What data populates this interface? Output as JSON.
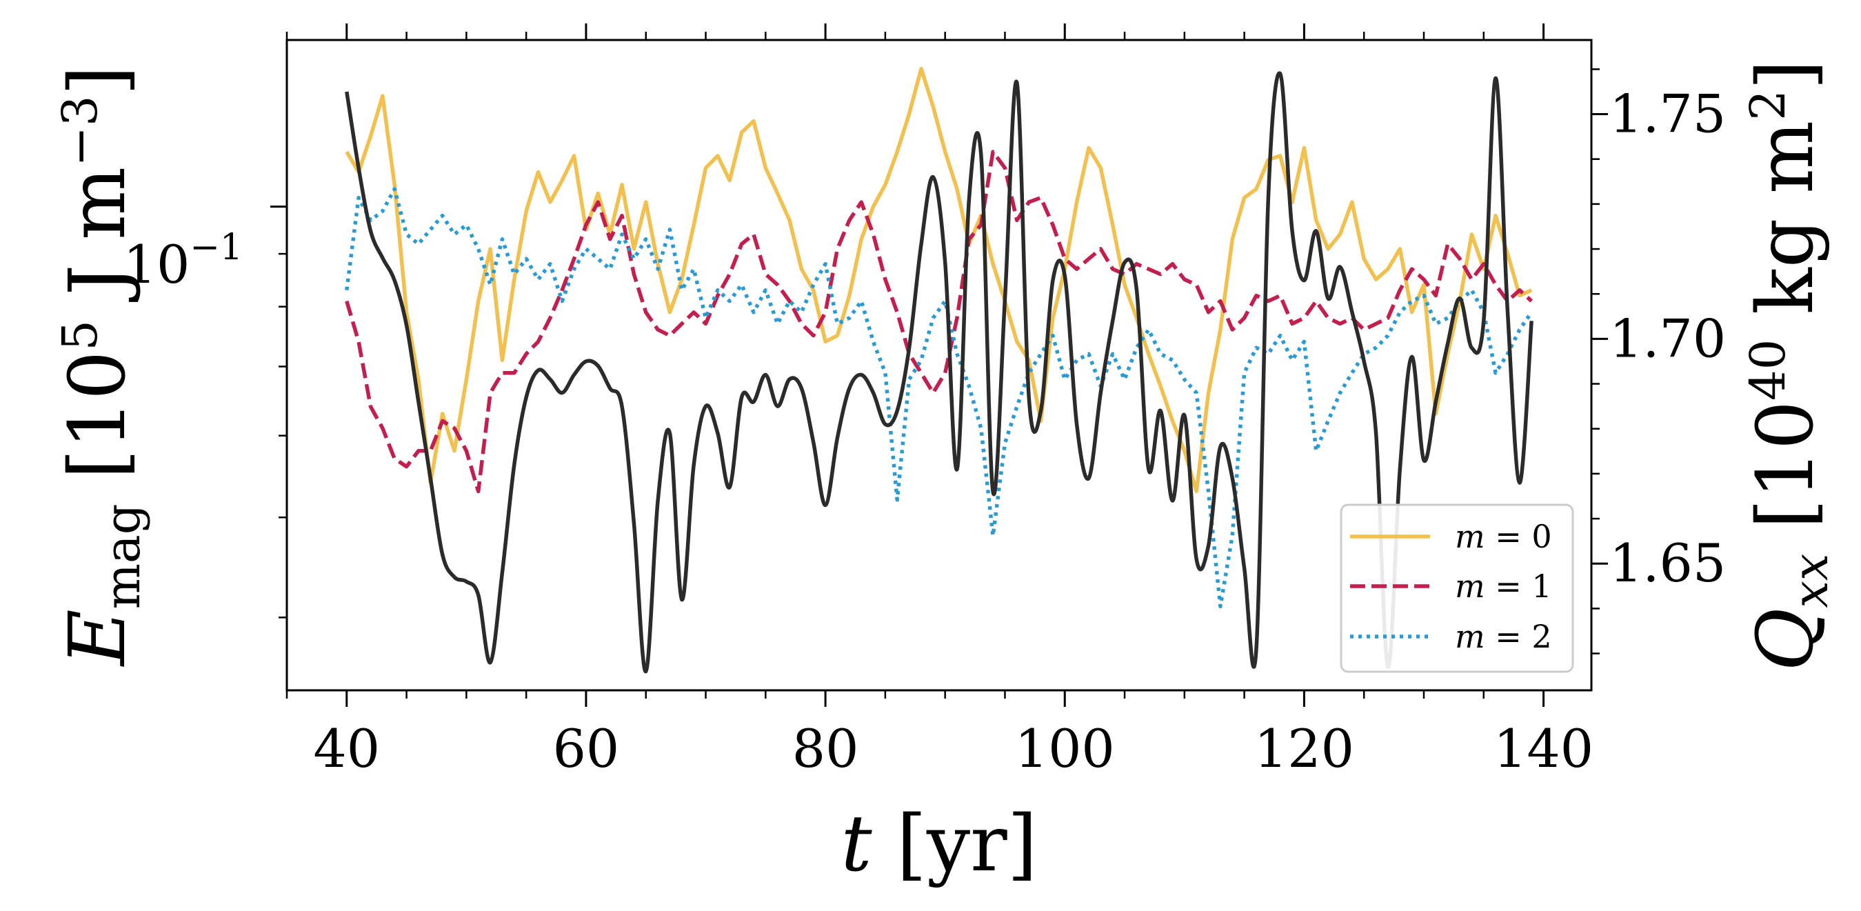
{
  "chart_data": {
    "type": "line",
    "title": "",
    "xlabel": "t [yr]",
    "ylabel_left": "E_mag [10^5 J m^-3]",
    "ylabel_right": "Q_xx [10^40 kg m^2]",
    "xlim": [
      35,
      144
    ],
    "x_ticks": [
      40,
      60,
      80,
      100,
      120,
      140
    ],
    "x_tick_labels": [
      "40",
      "60",
      "80",
      "100",
      "120",
      "140"
    ],
    "y_left_scale": "log",
    "y_left_lim": [
      0.034,
      0.145
    ],
    "y_left_tick_label": "10^-1",
    "y_left_tick_value": 0.1,
    "y_right_lim": [
      1.6218,
      1.7665
    ],
    "y_right_ticks": [
      1.65,
      1.7,
      1.75
    ],
    "y_right_tick_labels": [
      "1.65",
      "1.70",
      "1.75"
    ],
    "legend": {
      "position": "lower right",
      "entries": [
        {
          "label": "m = 0",
          "var": "m",
          "num": "0",
          "style": "solid",
          "color": "#f2c04f"
        },
        {
          "label": "m = 1",
          "var": "m",
          "num": "1",
          "style": "dashed",
          "color": "#c41e4e"
        },
        {
          "label": "m = 2",
          "var": "m",
          "num": "2",
          "style": "dotted",
          "color": "#2a9ad4"
        }
      ]
    },
    "series": [
      {
        "name": "m = 0",
        "axis": "left",
        "style": "solid",
        "color": "#f2c04f",
        "x": [
          40,
          41,
          42,
          43,
          44,
          45,
          46,
          47,
          48,
          49,
          50,
          51,
          52,
          53,
          54,
          55,
          56,
          57,
          58,
          59,
          60,
          61,
          62,
          63,
          64,
          65,
          66,
          67,
          68,
          69,
          70,
          71,
          72,
          73,
          74,
          75,
          76,
          77,
          78,
          79,
          80,
          81,
          82,
          83,
          84,
          85,
          86,
          87,
          88,
          89,
          90,
          91,
          92,
          93,
          94,
          95,
          96,
          97,
          98,
          99,
          100,
          101,
          102,
          103,
          104,
          105,
          106,
          107,
          108,
          109,
          110,
          111,
          112,
          113,
          114,
          115,
          116,
          117,
          118,
          119,
          120,
          121,
          122,
          123,
          124,
          125,
          126,
          127,
          128,
          129,
          130,
          131,
          132,
          133,
          134,
          135,
          136,
          137,
          138,
          139
        ],
        "y": [
          0.113,
          0.108,
          0.117,
          0.128,
          0.105,
          0.079,
          0.068,
          0.054,
          0.063,
          0.058,
          0.068,
          0.081,
          0.091,
          0.071,
          0.085,
          0.099,
          0.108,
          0.101,
          0.106,
          0.112,
          0.095,
          0.103,
          0.094,
          0.105,
          0.091,
          0.101,
          0.088,
          0.079,
          0.085,
          0.096,
          0.109,
          0.112,
          0.106,
          0.118,
          0.121,
          0.109,
          0.103,
          0.097,
          0.087,
          0.083,
          0.074,
          0.075,
          0.082,
          0.093,
          0.1,
          0.105,
          0.113,
          0.123,
          0.136,
          0.125,
          0.113,
          0.104,
          0.092,
          0.098,
          0.088,
          0.081,
          0.074,
          0.071,
          0.062,
          0.078,
          0.087,
          0.101,
          0.114,
          0.109,
          0.096,
          0.084,
          0.078,
          0.072,
          0.067,
          0.062,
          0.058,
          0.053,
          0.066,
          0.076,
          0.093,
          0.102,
          0.104,
          0.111,
          0.112,
          0.101,
          0.114,
          0.097,
          0.091,
          0.094,
          0.101,
          0.089,
          0.085,
          0.087,
          0.091,
          0.079,
          0.084,
          0.063,
          0.072,
          0.081,
          0.094,
          0.087,
          0.098,
          0.09,
          0.082,
          0.083
        ]
      },
      {
        "name": "m = 1",
        "axis": "left",
        "style": "dashed",
        "color": "#c41e4e",
        "x": [
          40,
          41,
          42,
          43,
          44,
          45,
          46,
          47,
          48,
          49,
          50,
          51,
          52,
          53,
          54,
          55,
          56,
          57,
          58,
          59,
          60,
          61,
          62,
          63,
          64,
          65,
          66,
          67,
          68,
          69,
          70,
          71,
          72,
          73,
          74,
          75,
          76,
          77,
          78,
          79,
          80,
          81,
          82,
          83,
          84,
          85,
          86,
          87,
          88,
          89,
          90,
          91,
          92,
          93,
          94,
          95,
          96,
          97,
          98,
          99,
          100,
          101,
          102,
          103,
          104,
          105,
          106,
          107,
          108,
          109,
          110,
          111,
          112,
          113,
          114,
          115,
          116,
          117,
          118,
          119,
          120,
          121,
          122,
          123,
          124,
          125,
          126,
          127,
          128,
          129,
          130,
          131,
          132,
          133,
          134,
          135,
          136,
          137,
          138,
          139
        ],
        "y": [
          0.081,
          0.074,
          0.064,
          0.061,
          0.057,
          0.056,
          0.058,
          0.058,
          0.062,
          0.061,
          0.058,
          0.053,
          0.066,
          0.069,
          0.069,
          0.072,
          0.074,
          0.078,
          0.083,
          0.089,
          0.096,
          0.101,
          0.093,
          0.098,
          0.086,
          0.079,
          0.076,
          0.075,
          0.077,
          0.079,
          0.077,
          0.082,
          0.086,
          0.092,
          0.094,
          0.086,
          0.084,
          0.081,
          0.077,
          0.075,
          0.079,
          0.091,
          0.097,
          0.101,
          0.094,
          0.085,
          0.079,
          0.072,
          0.069,
          0.066,
          0.069,
          0.078,
          0.093,
          0.096,
          0.113,
          0.109,
          0.097,
          0.101,
          0.102,
          0.096,
          0.089,
          0.087,
          0.089,
          0.091,
          0.087,
          0.086,
          0.088,
          0.087,
          0.086,
          0.088,
          0.085,
          0.084,
          0.079,
          0.081,
          0.076,
          0.078,
          0.082,
          0.081,
          0.082,
          0.077,
          0.078,
          0.081,
          0.078,
          0.077,
          0.078,
          0.076,
          0.077,
          0.078,
          0.083,
          0.087,
          0.085,
          0.082,
          0.092,
          0.089,
          0.085,
          0.088,
          0.084,
          0.081,
          0.083,
          0.081
        ]
      },
      {
        "name": "m = 2",
        "axis": "left",
        "style": "dotted",
        "color": "#2a9ad4",
        "x": [
          40,
          41,
          42,
          43,
          44,
          45,
          46,
          47,
          48,
          49,
          50,
          51,
          52,
          53,
          54,
          55,
          56,
          57,
          58,
          59,
          60,
          61,
          62,
          63,
          64,
          65,
          66,
          67,
          68,
          69,
          70,
          71,
          72,
          73,
          74,
          75,
          76,
          77,
          78,
          79,
          80,
          81,
          82,
          83,
          84,
          85,
          86,
          87,
          88,
          89,
          90,
          91,
          92,
          93,
          94,
          95,
          96,
          97,
          98,
          99,
          100,
          101,
          102,
          103,
          104,
          105,
          106,
          107,
          108,
          109,
          110,
          111,
          112,
          113,
          114,
          115,
          116,
          117,
          118,
          119,
          120,
          121,
          122,
          123,
          124,
          125,
          126,
          127,
          128,
          129,
          130,
          131,
          132,
          133,
          134,
          135,
          136,
          137,
          138,
          139
        ],
        "y": [
          0.083,
          0.102,
          0.097,
          0.099,
          0.104,
          0.094,
          0.092,
          0.095,
          0.098,
          0.094,
          0.096,
          0.091,
          0.084,
          0.093,
          0.086,
          0.089,
          0.085,
          0.088,
          0.081,
          0.087,
          0.091,
          0.089,
          0.087,
          0.094,
          0.089,
          0.093,
          0.087,
          0.095,
          0.083,
          0.087,
          0.078,
          0.083,
          0.081,
          0.084,
          0.079,
          0.083,
          0.077,
          0.081,
          0.079,
          0.084,
          0.088,
          0.077,
          0.078,
          0.081,
          0.074,
          0.069,
          0.052,
          0.068,
          0.071,
          0.078,
          0.081,
          0.072,
          0.067,
          0.061,
          0.048,
          0.059,
          0.064,
          0.069,
          0.072,
          0.075,
          0.068,
          0.071,
          0.072,
          0.067,
          0.072,
          0.068,
          0.073,
          0.076,
          0.072,
          0.071,
          0.068,
          0.066,
          0.053,
          0.041,
          0.048,
          0.069,
          0.073,
          0.072,
          0.075,
          0.071,
          0.074,
          0.058,
          0.062,
          0.066,
          0.069,
          0.072,
          0.073,
          0.075,
          0.079,
          0.081,
          0.082,
          0.077,
          0.078,
          0.081,
          0.083,
          0.079,
          0.069,
          0.072,
          0.076,
          0.079
        ]
      },
      {
        "name": "Q_xx",
        "axis": "right",
        "style": "solid",
        "color": "#2b2b2b",
        "x": [
          40,
          41,
          42,
          43,
          44,
          45,
          46,
          47,
          48,
          49,
          50,
          51,
          52,
          53,
          54,
          55,
          56,
          57,
          58,
          59,
          60,
          61,
          62,
          63,
          64,
          65,
          66,
          67,
          68,
          69,
          70,
          71,
          72,
          73,
          74,
          75,
          76,
          77,
          78,
          79,
          80,
          81,
          82,
          83,
          84,
          85,
          86,
          87,
          88,
          89,
          90,
          91,
          92,
          93,
          94,
          95,
          96,
          97,
          98,
          99,
          100,
          101,
          102,
          103,
          104,
          105,
          106,
          107,
          108,
          109,
          110,
          111,
          112,
          113,
          114,
          115,
          116,
          117,
          118,
          119,
          120,
          121,
          122,
          123,
          124,
          125,
          126,
          127,
          128,
          129,
          130,
          131,
          132,
          133,
          134,
          135,
          136,
          137,
          138,
          139
        ],
        "y": [
          1.755,
          1.738,
          1.724,
          1.718,
          1.713,
          1.703,
          1.686,
          1.669,
          1.652,
          1.647,
          1.646,
          1.643,
          1.628,
          1.648,
          1.672,
          1.687,
          1.693,
          1.691,
          1.688,
          1.692,
          1.695,
          1.694,
          1.689,
          1.685,
          1.659,
          1.626,
          1.664,
          1.679,
          1.642,
          1.672,
          1.685,
          1.679,
          1.667,
          1.687,
          1.686,
          1.692,
          1.685,
          1.691,
          1.689,
          1.677,
          1.663,
          1.678,
          1.689,
          1.692,
          1.688,
          1.681,
          1.684,
          1.698,
          1.721,
          1.736,
          1.717,
          1.671,
          1.731,
          1.741,
          1.666,
          1.709,
          1.757,
          1.687,
          1.684,
          1.713,
          1.714,
          1.681,
          1.669,
          1.688,
          1.704,
          1.717,
          1.711,
          1.671,
          1.684,
          1.664,
          1.683,
          1.651,
          1.654,
          1.676,
          1.669,
          1.649,
          1.631,
          1.731,
          1.759,
          1.724,
          1.713,
          1.724,
          1.709,
          1.716,
          1.706,
          1.695,
          1.679,
          1.627,
          1.671,
          1.696,
          1.673,
          1.686,
          1.699,
          1.709,
          1.698,
          1.704,
          1.758,
          1.706,
          1.668,
          1.704
        ]
      }
    ]
  }
}
